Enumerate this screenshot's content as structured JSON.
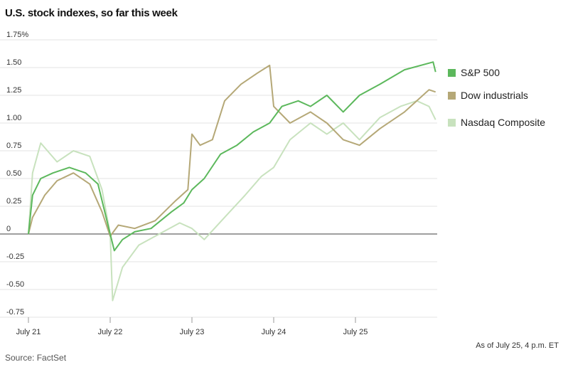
{
  "title": "U.S. stock indexes, so far this week",
  "source": "Source: FactSet",
  "note": "As of July 25, 4 p.m. ET",
  "chart_data": {
    "type": "line",
    "title": "U.S. stock indexes, so far this week",
    "y_ticks": [
      "1.75%",
      "1.50",
      "1.25",
      "1.00",
      "0.75",
      "0.50",
      "0.25",
      "0",
      "-0.25",
      "-0.50",
      "-0.75"
    ],
    "ylim": [
      -0.75,
      1.75
    ],
    "x_ticks": [
      "July 21",
      "July 22",
      "July 23",
      "July 24",
      "July 25"
    ],
    "grid": "horizontal",
    "legend_position": "right",
    "series": [
      {
        "name": "S&P 500",
        "color": "#5cb85c",
        "values": [
          [
            0.0,
            0.0
          ],
          [
            0.05,
            0.35
          ],
          [
            0.15,
            0.5
          ],
          [
            0.3,
            0.55
          ],
          [
            0.5,
            0.6
          ],
          [
            0.7,
            0.55
          ],
          [
            0.85,
            0.45
          ],
          [
            1.0,
            0.0
          ],
          [
            1.05,
            -0.15
          ],
          [
            1.15,
            -0.05
          ],
          [
            1.3,
            0.02
          ],
          [
            1.5,
            0.05
          ],
          [
            1.75,
            0.2
          ],
          [
            1.9,
            0.28
          ],
          [
            2.0,
            0.4
          ],
          [
            2.15,
            0.5
          ],
          [
            2.35,
            0.72
          ],
          [
            2.55,
            0.8
          ],
          [
            2.75,
            0.92
          ],
          [
            2.95,
            1.0
          ],
          [
            3.1,
            1.15
          ],
          [
            3.3,
            1.2
          ],
          [
            3.45,
            1.15
          ],
          [
            3.65,
            1.25
          ],
          [
            3.85,
            1.1
          ],
          [
            4.05,
            1.25
          ],
          [
            4.3,
            1.35
          ],
          [
            4.6,
            1.48
          ],
          [
            4.95,
            1.55
          ],
          [
            4.98,
            1.46
          ]
        ]
      },
      {
        "name": "Dow industrials",
        "color": "#b5a877",
        "values": [
          [
            0.0,
            0.0
          ],
          [
            0.05,
            0.15
          ],
          [
            0.2,
            0.35
          ],
          [
            0.35,
            0.48
          ],
          [
            0.55,
            0.55
          ],
          [
            0.75,
            0.45
          ],
          [
            0.9,
            0.2
          ],
          [
            1.0,
            -0.02
          ],
          [
            1.1,
            0.08
          ],
          [
            1.3,
            0.05
          ],
          [
            1.55,
            0.12
          ],
          [
            1.8,
            0.3
          ],
          [
            1.95,
            0.4
          ],
          [
            2.0,
            0.9
          ],
          [
            2.1,
            0.8
          ],
          [
            2.25,
            0.85
          ],
          [
            2.4,
            1.2
          ],
          [
            2.6,
            1.35
          ],
          [
            2.8,
            1.45
          ],
          [
            2.95,
            1.52
          ],
          [
            3.0,
            1.15
          ],
          [
            3.2,
            1.0
          ],
          [
            3.45,
            1.1
          ],
          [
            3.65,
            1.0
          ],
          [
            3.85,
            0.85
          ],
          [
            4.05,
            0.8
          ],
          [
            4.3,
            0.95
          ],
          [
            4.6,
            1.1
          ],
          [
            4.9,
            1.3
          ],
          [
            4.98,
            1.28
          ]
        ]
      },
      {
        "name": "Nasdaq Composite",
        "color": "#c8e2be",
        "values": [
          [
            0.0,
            0.0
          ],
          [
            0.05,
            0.55
          ],
          [
            0.15,
            0.82
          ],
          [
            0.35,
            0.65
          ],
          [
            0.55,
            0.75
          ],
          [
            0.75,
            0.7
          ],
          [
            0.9,
            0.4
          ],
          [
            1.0,
            0.0
          ],
          [
            1.03,
            -0.6
          ],
          [
            1.15,
            -0.3
          ],
          [
            1.35,
            -0.1
          ],
          [
            1.6,
            0.0
          ],
          [
            1.85,
            0.1
          ],
          [
            2.0,
            0.05
          ],
          [
            2.15,
            -0.05
          ],
          [
            2.4,
            0.15
          ],
          [
            2.65,
            0.35
          ],
          [
            2.85,
            0.52
          ],
          [
            3.0,
            0.6
          ],
          [
            3.2,
            0.85
          ],
          [
            3.45,
            1.0
          ],
          [
            3.65,
            0.9
          ],
          [
            3.85,
            1.0
          ],
          [
            4.05,
            0.85
          ],
          [
            4.3,
            1.05
          ],
          [
            4.55,
            1.15
          ],
          [
            4.75,
            1.2
          ],
          [
            4.9,
            1.15
          ],
          [
            4.98,
            1.03
          ]
        ]
      }
    ]
  }
}
